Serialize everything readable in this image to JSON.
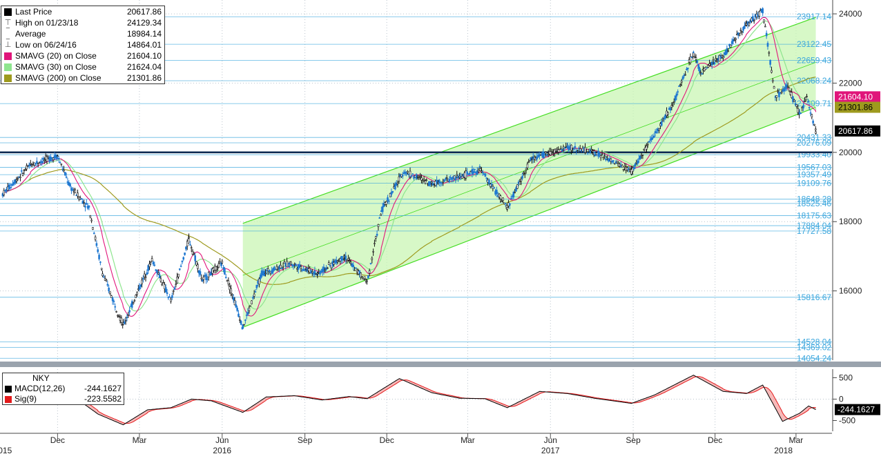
{
  "chart_data": [
    {
      "type": "candlestick",
      "security": "NKY",
      "ylim": [
        14000,
        24400
      ],
      "y_ticks": [
        16000,
        18000,
        20000,
        22000,
        24000
      ],
      "x_ticks": [
        {
          "label": "Dec",
          "date": "2015-12-01"
        },
        {
          "label": "Mar",
          "date": "2016-03-01"
        },
        {
          "label": "Jun",
          "date": "2016-06-01"
        },
        {
          "label": "Sep",
          "date": "2016-09-01"
        },
        {
          "label": "Dec",
          "date": "2016-12-01"
        },
        {
          "label": "Mar",
          "date": "2017-03-01"
        },
        {
          "label": "Jun",
          "date": "2017-06-01"
        },
        {
          "label": "Sep",
          "date": "2017-09-01"
        },
        {
          "label": "Dec",
          "date": "2017-12-01"
        },
        {
          "label": "Mar",
          "date": "2018-03-01"
        }
      ],
      "year_labels": [
        {
          "label": "2015",
          "date": "2015-10-01"
        },
        {
          "label": "2016",
          "date": "2016-06-01"
        },
        {
          "label": "2017",
          "date": "2017-06-01"
        },
        {
          "label": "2018",
          "date": "2018-02-15"
        }
      ],
      "legend": [
        {
          "label": "Last Price",
          "value": "20617.86",
          "color": "#000000",
          "glyph": "square"
        },
        {
          "label": "High on 01/23/18",
          "value": "24129.34",
          "color": "#666666",
          "glyph": "high"
        },
        {
          "label": "Average",
          "value": "18984.14",
          "color": "#666666",
          "glyph": "avg"
        },
        {
          "label": "Low on 06/24/16",
          "value": "14864.01",
          "color": "#666666",
          "glyph": "low"
        },
        {
          "label": "SMAVG (20) on Close",
          "value": "21604.10",
          "color": "#e0157a",
          "glyph": "square"
        },
        {
          "label": "SMAVG (30) on Close",
          "value": "21624.04",
          "color": "#8ee58e",
          "glyph": "square"
        },
        {
          "label": "SMAVG (200) on Close",
          "value": "21301.86",
          "color": "#9e9a1e",
          "glyph": "square"
        }
      ],
      "price_path": [
        {
          "date": "2015-10-01",
          "close": 18800
        },
        {
          "date": "2015-11-01",
          "close": 19650
        },
        {
          "date": "2015-12-01",
          "close": 19900
        },
        {
          "date": "2015-12-15",
          "close": 19000
        },
        {
          "date": "2016-01-05",
          "close": 18400
        },
        {
          "date": "2016-01-20",
          "close": 16500
        },
        {
          "date": "2016-02-12",
          "close": 15000
        },
        {
          "date": "2016-03-01",
          "close": 16100
        },
        {
          "date": "2016-03-15",
          "close": 16900
        },
        {
          "date": "2016-04-05",
          "close": 15700
        },
        {
          "date": "2016-04-25",
          "close": 17500
        },
        {
          "date": "2016-05-10",
          "close": 16300
        },
        {
          "date": "2016-06-01",
          "close": 16800
        },
        {
          "date": "2016-06-24",
          "close": 14950
        },
        {
          "date": "2016-07-15",
          "close": 16500
        },
        {
          "date": "2016-08-15",
          "close": 16800
        },
        {
          "date": "2016-09-15",
          "close": 16500
        },
        {
          "date": "2016-10-15",
          "close": 17000
        },
        {
          "date": "2016-11-09",
          "close": 16250
        },
        {
          "date": "2016-11-25",
          "close": 18300
        },
        {
          "date": "2016-12-20",
          "close": 19450
        },
        {
          "date": "2017-01-20",
          "close": 19100
        },
        {
          "date": "2017-02-20",
          "close": 19300
        },
        {
          "date": "2017-03-15",
          "close": 19500
        },
        {
          "date": "2017-04-14",
          "close": 18400
        },
        {
          "date": "2017-05-10",
          "close": 19800
        },
        {
          "date": "2017-06-20",
          "close": 20150
        },
        {
          "date": "2017-07-20",
          "close": 20000
        },
        {
          "date": "2017-08-30",
          "close": 19450
        },
        {
          "date": "2017-09-20",
          "close": 20300
        },
        {
          "date": "2017-10-15",
          "close": 21400
        },
        {
          "date": "2017-11-07",
          "close": 22900
        },
        {
          "date": "2017-11-15",
          "close": 22300
        },
        {
          "date": "2017-12-10",
          "close": 22800
        },
        {
          "date": "2018-01-05",
          "close": 23700
        },
        {
          "date": "2018-01-23",
          "close": 24100
        },
        {
          "date": "2018-02-06",
          "close": 21600
        },
        {
          "date": "2018-02-20",
          "close": 21900
        },
        {
          "date": "2018-03-05",
          "close": 21100
        },
        {
          "date": "2018-03-13",
          "close": 21600
        },
        {
          "date": "2018-03-23",
          "close": 20617.86
        }
      ],
      "channel": {
        "upper": [
          {
            "date": "2016-06-24",
            "value": 17950
          },
          {
            "date": "2018-03-23",
            "value": 23900
          }
        ],
        "lower": [
          {
            "date": "2016-06-24",
            "value": 14950
          },
          {
            "date": "2018-03-23",
            "value": 21300
          }
        ],
        "color": "#44dd22",
        "fill": "#c9f5b4"
      },
      "horizontal_levels": [
        {
          "value": 23917.14,
          "label": "23917.14",
          "color": "#3aa6dd"
        },
        {
          "value": 23122.45,
          "label": "23122.45",
          "color": "#3aa6dd"
        },
        {
          "value": 22659.43,
          "label": "22659.43",
          "color": "#3aa6dd"
        },
        {
          "value": 22068.24,
          "label": "22068.24",
          "color": "#3aa6dd"
        },
        {
          "value": 21409.71,
          "label": "21409.71",
          "color": "#3aa6dd"
        },
        {
          "value": 20431.33,
          "label": "20431.33",
          "color": "#3aa6dd"
        },
        {
          "value": 20276.09,
          "label": "20276.09",
          "color": "#3aa6dd"
        },
        {
          "value": 19933.4,
          "label": "19933.40",
          "color": "#3aa6dd"
        },
        {
          "value": 19567.03,
          "label": "19567.03",
          "color": "#3aa6dd"
        },
        {
          "value": 19357.49,
          "label": "19357.49",
          "color": "#3aa6dd"
        },
        {
          "value": 19109.76,
          "label": "19109.76",
          "color": "#3aa6dd"
        },
        {
          "value": 18648.28,
          "label": "18648.28",
          "color": "#3aa6dd"
        },
        {
          "value": 18525.46,
          "label": "18525.46",
          "color": "#3aa6dd"
        },
        {
          "value": 18175.63,
          "label": "18175.63",
          "color": "#3aa6dd"
        },
        {
          "value": 17884.04,
          "label": "17884.04",
          "color": "#3aa6dd"
        },
        {
          "value": 17727.58,
          "label": "17727.58",
          "color": "#3aa6dd"
        },
        {
          "value": 15816.67,
          "label": "15816.67",
          "color": "#3aa6dd"
        },
        {
          "value": 14528.04,
          "label": "14528.04",
          "color": "#3aa6dd"
        },
        {
          "value": 14369.02,
          "label": "14369.02",
          "color": "#3aa6dd"
        },
        {
          "value": 14054.24,
          "label": "14054.24",
          "color": "#3aa6dd"
        }
      ],
      "support_line": {
        "value": 20000,
        "color": "#0e2a52"
      },
      "price_tags": [
        {
          "value": 21604.1,
          "label": "21604.10",
          "bg": "#e0157a",
          "fg": "#ffffff"
        },
        {
          "value": 21301.86,
          "label": "21301.86",
          "bg": "#9e9a1e",
          "fg": "#000000"
        },
        {
          "value": 20617.86,
          "label": "20617.86",
          "bg": "#000000",
          "fg": "#ffffff"
        }
      ]
    },
    {
      "type": "line",
      "title": "NKY",
      "ylim": [
        -750,
        700
      ],
      "y_ticks": [
        {
          "value": 500,
          "label": "500"
        },
        {
          "value": 0,
          "label": "0"
        },
        {
          "value": -500,
          "label": "-500"
        }
      ],
      "series": [
        {
          "name": "MACD(12,26)",
          "value": "-244.1627",
          "color": "#000000"
        },
        {
          "name": "Sig(9)",
          "value": "-223.5582",
          "color": "#e31a1c"
        }
      ],
      "macd_path": [
        {
          "date": "2015-10-01",
          "value": 150
        },
        {
          "date": "2015-11-15",
          "value": 300
        },
        {
          "date": "2015-12-15",
          "value": 120
        },
        {
          "date": "2016-01-15",
          "value": -350
        },
        {
          "date": "2016-02-12",
          "value": -600
        },
        {
          "date": "2016-03-10",
          "value": -250
        },
        {
          "date": "2016-04-05",
          "value": -200
        },
        {
          "date": "2016-04-28",
          "value": 0
        },
        {
          "date": "2016-05-20",
          "value": -40
        },
        {
          "date": "2016-06-24",
          "value": -310
        },
        {
          "date": "2016-07-20",
          "value": 50
        },
        {
          "date": "2016-08-20",
          "value": 80
        },
        {
          "date": "2016-09-20",
          "value": -20
        },
        {
          "date": "2016-10-20",
          "value": 60
        },
        {
          "date": "2016-11-09",
          "value": 10
        },
        {
          "date": "2016-12-15",
          "value": 480
        },
        {
          "date": "2017-01-20",
          "value": 150
        },
        {
          "date": "2017-02-20",
          "value": 20
        },
        {
          "date": "2017-03-20",
          "value": 10
        },
        {
          "date": "2017-04-14",
          "value": -200
        },
        {
          "date": "2017-05-20",
          "value": 180
        },
        {
          "date": "2017-06-20",
          "value": 130
        },
        {
          "date": "2017-07-20",
          "value": 20
        },
        {
          "date": "2017-08-30",
          "value": -100
        },
        {
          "date": "2017-09-25",
          "value": 100
        },
        {
          "date": "2017-11-07",
          "value": 560
        },
        {
          "date": "2017-12-10",
          "value": 180
        },
        {
          "date": "2018-01-05",
          "value": 130
        },
        {
          "date": "2018-01-23",
          "value": 330
        },
        {
          "date": "2018-02-14",
          "value": -520
        },
        {
          "date": "2018-03-05",
          "value": -330
        },
        {
          "date": "2018-03-15",
          "value": -160
        },
        {
          "date": "2018-03-23",
          "value": -244.1627
        }
      ],
      "tags": [
        {
          "value": -244.1627,
          "label": "-244.1627",
          "bg": "#000000",
          "fg": "#ffffff"
        }
      ]
    }
  ]
}
